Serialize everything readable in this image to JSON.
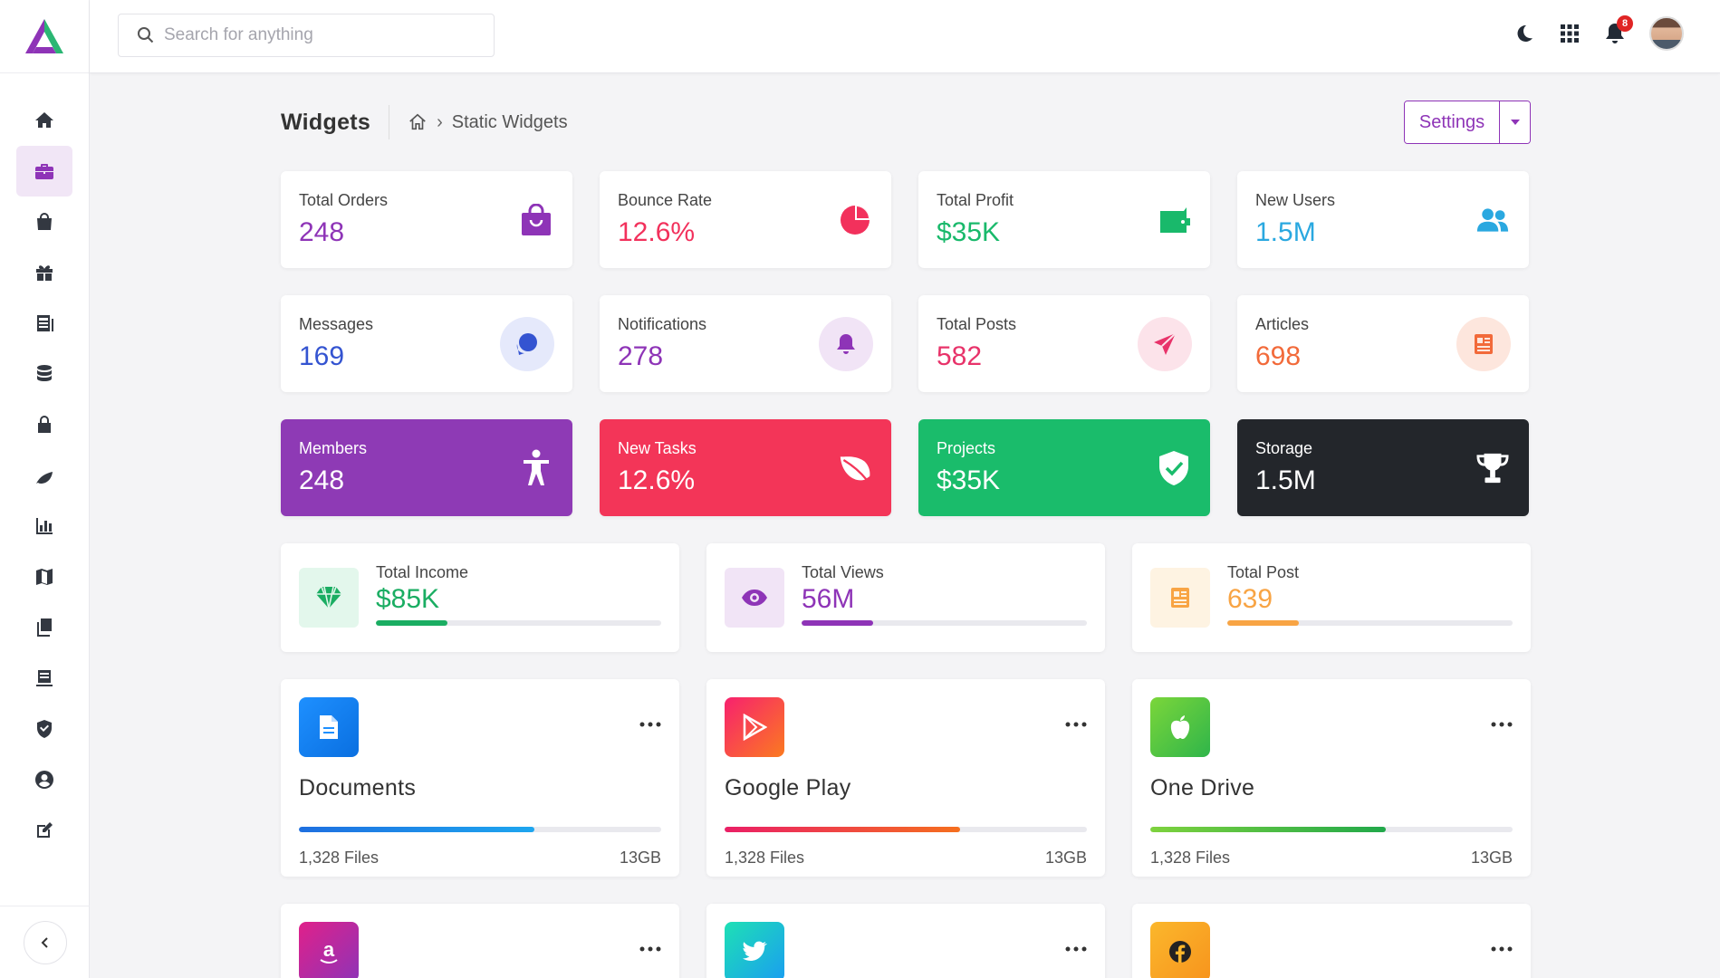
{
  "search": {
    "placeholder": "Search for anything"
  },
  "topbar": {
    "notification_count": "8"
  },
  "page": {
    "title": "Widgets",
    "breadcrumb": "Static Widgets",
    "settings_label": "Settings"
  },
  "stats_row1": [
    {
      "label": "Total Orders",
      "value": "248",
      "color": "#8e34b7",
      "icon": "shopping-bag-icon"
    },
    {
      "label": "Bounce Rate",
      "value": "12.6%",
      "color": "#f2315c",
      "icon": "pie-chart-icon"
    },
    {
      "label": "Total Profit",
      "value": "$35K",
      "color": "#19b96b",
      "icon": "wallet-icon"
    },
    {
      "label": "New Users",
      "value": "1.5M",
      "color": "#2aa8e0",
      "icon": "users-icon"
    }
  ],
  "stats_row2": [
    {
      "label": "Messages",
      "value": "169",
      "color": "#3454d1",
      "icon": "chat-icon"
    },
    {
      "label": "Notifications",
      "value": "278",
      "color": "#8e34b7",
      "icon": "bell-icon"
    },
    {
      "label": "Total Posts",
      "value": "582",
      "color": "#e8336a",
      "icon": "send-icon"
    },
    {
      "label": "Articles",
      "value": "698",
      "color": "#f26a3a",
      "icon": "newspaper-icon"
    }
  ],
  "stats_row3": [
    {
      "label": "Members",
      "value": "248",
      "bg": "#8e3ab5",
      "icon": "accessibility-icon"
    },
    {
      "label": "New Tasks",
      "value": "12.6%",
      "bg": "#f33558",
      "icon": "leaf-icon"
    },
    {
      "label": "Projects",
      "value": "$35K",
      "bg": "#1abc6b",
      "icon": "shield-check-icon"
    },
    {
      "label": "Storage",
      "value": "1.5M",
      "bg": "#23262b",
      "icon": "trophy-icon"
    }
  ],
  "progress_cards": [
    {
      "label": "Total Income",
      "value": "$85K",
      "color": "#1aad62",
      "progress": 0.25,
      "icon": "diamond-icon"
    },
    {
      "label": "Total Views",
      "value": "56M",
      "color": "#8e34b7",
      "progress": 0.25,
      "icon": "eye-icon"
    },
    {
      "label": "Total Post",
      "value": "639",
      "color": "#f8a444",
      "progress": 0.25,
      "icon": "newspaper-icon"
    }
  ],
  "apps": [
    {
      "name": "Documents",
      "files": "1,328 Files",
      "size": "13GB",
      "progress": 0.65,
      "icon": "document-icon"
    },
    {
      "name": "Google Play",
      "files": "1,328 Files",
      "size": "13GB",
      "progress": 0.65,
      "icon": "play-icon"
    },
    {
      "name": "One Drive",
      "files": "1,328 Files",
      "size": "13GB",
      "progress": 0.65,
      "icon": "apple-icon"
    }
  ],
  "apps_row2_icons": [
    "amazon-icon",
    "twitter-icon",
    "facebook-icon"
  ]
}
